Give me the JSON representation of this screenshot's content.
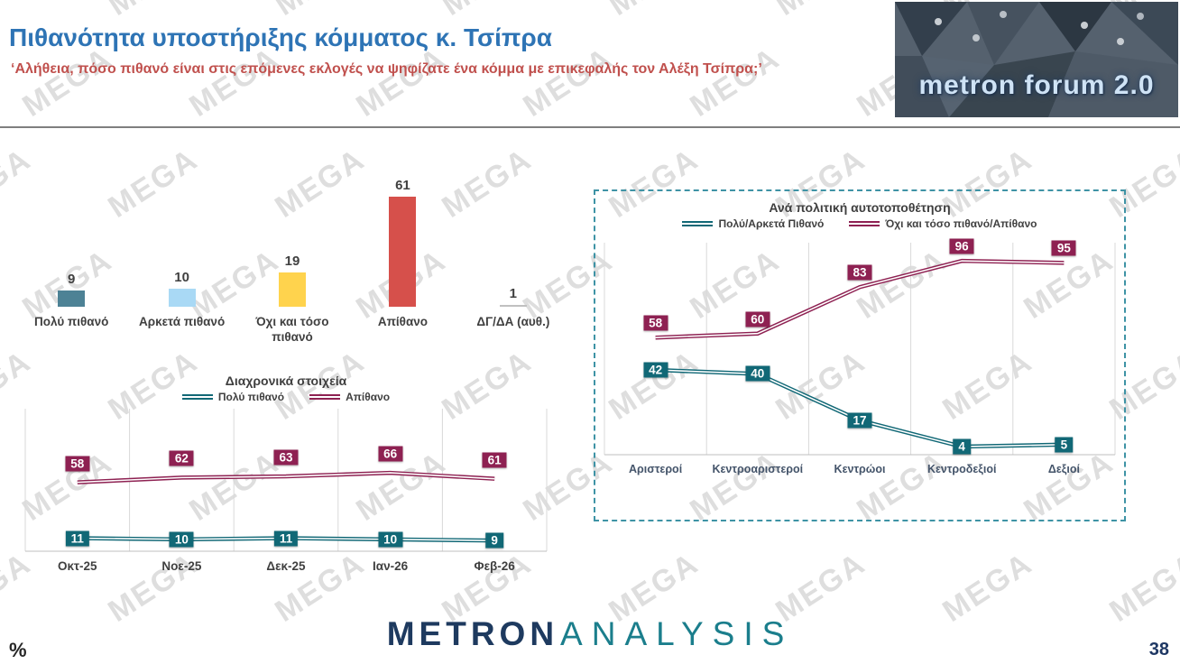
{
  "header": {
    "title": "Πιθανότητα υποστήριξης κόμματος κ. Τσίπρα",
    "subtitle": "‘Αλήθεια, πόσο πιθανό είναι στις επόμενες εκλογές να ψηφίζατε ένα κόμμα με επικεφαλής τον Αλέξη Τσίπρα;’",
    "logo_text": "metron forum 2.0"
  },
  "watermark": "MEGA",
  "footer": {
    "percent_label": "%",
    "page_number": "38",
    "brand_primary": "METRON",
    "brand_secondary": "ANALYSIS"
  },
  "colors": {
    "title_blue": "#2E74B5",
    "subtitle_red": "#C0504D",
    "teal_line": "#116876",
    "maroon_line": "#8E2152",
    "dashed_border": "#3E93A5"
  },
  "chart_data": [
    {
      "type": "bar",
      "title": "",
      "categories": [
        "Πολύ πιθανό",
        "Αρκετά πιθανό",
        "Όχι και τόσο πιθανό",
        "Απίθανο",
        "ΔΓ/ΔΑ (αυθ.)"
      ],
      "values": [
        9,
        10,
        19,
        61,
        1
      ],
      "colors": [
        "#4D8295",
        "#A9D9F5",
        "#FFD34D",
        "#D6504B",
        "#C0C0C0"
      ],
      "ylim": [
        0,
        70
      ],
      "grid": "off",
      "legend_position": "none"
    },
    {
      "type": "line",
      "title": "Διαχρονικά στοιχεία",
      "categories": [
        "Οκτ-25",
        "Νοε-25",
        "Δεκ-25",
        "Ιαν-26",
        "Φεβ-26"
      ],
      "series": [
        {
          "name": "Πολύ πιθανό",
          "color": "#116876",
          "values": [
            11,
            10,
            11,
            10,
            9
          ]
        },
        {
          "name": "Απίθανο",
          "color": "#8E2152",
          "values": [
            58,
            62,
            63,
            66,
            61
          ]
        }
      ],
      "ylim": [
        0,
        120
      ],
      "grid": "vertical",
      "legend_position": "top"
    },
    {
      "type": "line",
      "title": "Ανά πολιτική αυτοτοποθέτηση",
      "categories": [
        "Αριστεροί",
        "Κεντροαριστεροί",
        "Κεντρώοι",
        "Κεντροδεξιοί",
        "Δεξιοί"
      ],
      "series": [
        {
          "name": "Πολύ/Αρκετά Πιθανό",
          "color": "#116876",
          "values": [
            42,
            40,
            17,
            4,
            5
          ]
        },
        {
          "name": "Όχι και τόσο πιθανό/Απίθανο",
          "color": "#8E2152",
          "values": [
            58,
            60,
            83,
            96,
            95
          ]
        }
      ],
      "ylim": [
        0,
        105
      ],
      "grid": "vertical",
      "legend_position": "top"
    }
  ]
}
